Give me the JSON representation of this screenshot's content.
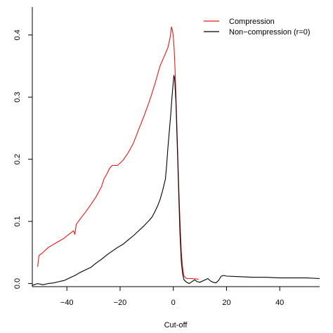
{
  "chart_data": {
    "type": "line",
    "title": "",
    "xlabel": "Cut-off",
    "ylabel": "",
    "xlim": [
      -53,
      55
    ],
    "ylim": [
      -0.005,
      0.445
    ],
    "x_ticks": [
      -40,
      -20,
      0,
      20,
      40
    ],
    "y_ticks": [
      0.0,
      0.1,
      0.2,
      0.3,
      0.4
    ],
    "x_tick_labels": [
      "−40",
      "−20",
      "0",
      "20",
      "40"
    ],
    "y_tick_labels": [
      "0.0",
      "0.1",
      "0.2",
      "0.3",
      "0.4"
    ],
    "grid": false,
    "legend_position": "top-right",
    "legend_top_label": "Compression",
    "legend_bottom_label": "Non−compression (r=0)",
    "series": [
      {
        "name": "Compression",
        "color": "#e31a1c",
        "points": [
          [
            -51,
            0.027
          ],
          [
            -50.5,
            0.045
          ],
          [
            -49,
            0.05
          ],
          [
            -47,
            0.058
          ],
          [
            -45,
            0.063
          ],
          [
            -43,
            0.068
          ],
          [
            -41,
            0.073
          ],
          [
            -39,
            0.08
          ],
          [
            -37.5,
            0.085
          ],
          [
            -37,
            0.079
          ],
          [
            -36.5,
            0.095
          ],
          [
            -35,
            0.104
          ],
          [
            -33,
            0.115
          ],
          [
            -31,
            0.127
          ],
          [
            -29,
            0.14
          ],
          [
            -27,
            0.156
          ],
          [
            -26,
            0.169
          ],
          [
            -25,
            0.176
          ],
          [
            -24,
            0.185
          ],
          [
            -23,
            0.19
          ],
          [
            -21,
            0.19
          ],
          [
            -19,
            0.198
          ],
          [
            -17,
            0.21
          ],
          [
            -15,
            0.226
          ],
          [
            -13,
            0.248
          ],
          [
            -11,
            0.27
          ],
          [
            -9,
            0.293
          ],
          [
            -7,
            0.32
          ],
          [
            -5,
            0.35
          ],
          [
            -3,
            0.37
          ],
          [
            -2,
            0.38
          ],
          [
            -1.2,
            0.396
          ],
          [
            -0.7,
            0.413
          ],
          [
            -0.3,
            0.407
          ],
          [
            0,
            0.397
          ],
          [
            0.3,
            0.38
          ],
          [
            0.6,
            0.35
          ],
          [
            1,
            0.3
          ],
          [
            1.5,
            0.23
          ],
          [
            2,
            0.16
          ],
          [
            2.5,
            0.1
          ],
          [
            3,
            0.05
          ],
          [
            3.5,
            0.025
          ],
          [
            4,
            0.012
          ],
          [
            5,
            0.008
          ],
          [
            6,
            0.008
          ],
          [
            7,
            0.008
          ],
          [
            9.5,
            0.007
          ]
        ]
      },
      {
        "name": "Non−compression (r=0)",
        "color": "#000000",
        "points": [
          [
            -53,
            -0.003
          ],
          [
            -51,
            0.0
          ],
          [
            -49,
            -0.002
          ],
          [
            -47,
            0.0
          ],
          [
            -45,
            0.001
          ],
          [
            -43,
            0.003
          ],
          [
            -41,
            0.005
          ],
          [
            -39,
            0.009
          ],
          [
            -37,
            0.013
          ],
          [
            -35,
            0.018
          ],
          [
            -33,
            0.022
          ],
          [
            -31,
            0.026
          ],
          [
            -29,
            0.033
          ],
          [
            -27,
            0.039
          ],
          [
            -25,
            0.046
          ],
          [
            -23,
            0.052
          ],
          [
            -21,
            0.058
          ],
          [
            -19,
            0.063
          ],
          [
            -17,
            0.07
          ],
          [
            -15,
            0.077
          ],
          [
            -13,
            0.085
          ],
          [
            -11,
            0.093
          ],
          [
            -9,
            0.102
          ],
          [
            -8,
            0.107
          ],
          [
            -7,
            0.115
          ],
          [
            -6,
            0.124
          ],
          [
            -5,
            0.135
          ],
          [
            -4,
            0.15
          ],
          [
            -3,
            0.168
          ],
          [
            -2.5,
            0.19
          ],
          [
            -2,
            0.22
          ],
          [
            -1.5,
            0.245
          ],
          [
            -1,
            0.27
          ],
          [
            -0.5,
            0.3
          ],
          [
            0,
            0.325
          ],
          [
            0.2,
            0.335
          ],
          [
            0.5,
            0.33
          ],
          [
            1,
            0.29
          ],
          [
            1.5,
            0.22
          ],
          [
            2,
            0.15
          ],
          [
            2.5,
            0.08
          ],
          [
            3,
            0.035
          ],
          [
            3.5,
            0.015
          ],
          [
            4,
            0.006
          ],
          [
            5,
            0.002
          ],
          [
            6,
            0.0
          ],
          [
            7,
            0.003
          ],
          [
            8,
            0.006
          ],
          [
            9,
            0.003
          ],
          [
            10,
            0.002
          ],
          [
            11,
            0.004
          ],
          [
            13,
            0.008
          ],
          [
            14,
            0.004
          ],
          [
            15,
            0.002
          ],
          [
            16,
            0.001
          ],
          [
            17,
            0.005
          ],
          [
            18,
            0.012
          ],
          [
            19,
            0.013
          ],
          [
            20,
            0.012
          ],
          [
            25,
            0.011
          ],
          [
            30,
            0.01
          ],
          [
            35,
            0.01
          ],
          [
            40,
            0.009
          ],
          [
            45,
            0.009
          ],
          [
            50,
            0.009
          ],
          [
            55,
            0.008
          ]
        ]
      }
    ]
  }
}
